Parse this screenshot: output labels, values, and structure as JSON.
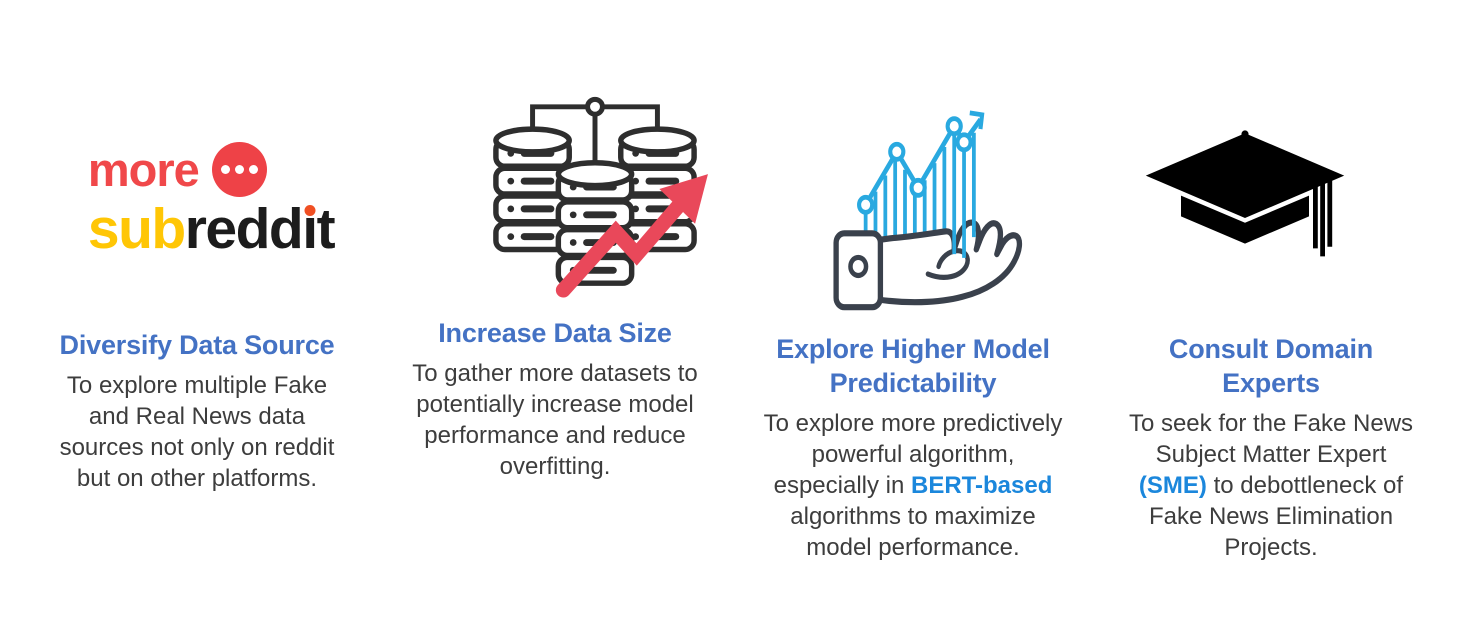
{
  "colors": {
    "background": "#ffffff",
    "heading_blue": "#4472C4",
    "accent_blue": "#1B87DC",
    "body_text": "#3D3D3D",
    "logo_red": "#F0484A",
    "logo_circle_red": "#EE4247",
    "logo_yellow": "#FFC605",
    "logo_black": "#1C1C1C",
    "logo_i_dot_orange": "#F04F23",
    "database_icon_stroke": "#2E2E2E",
    "growth_arrow_red": "#E9485A",
    "chart_blue": "#29A9E0",
    "hand_stroke": "#3A414C",
    "graduation_cap_black": "#000000"
  },
  "logo": {
    "word_more": "more",
    "word_sub": "sub",
    "word_redd": "redd",
    "word_i": "ı",
    "word_t": "t"
  },
  "cards": [
    {
      "id": "diversify-data-source",
      "icon": "more-subreddit-logo",
      "title": "Diversify Data Source",
      "body": [
        {
          "text": "To explore multiple Fake\nand Real News data\nsources not only on reddit\nbut on other platforms."
        }
      ]
    },
    {
      "id": "increase-data-size",
      "icon": "database-growth-icon",
      "title": "Increase Data Size",
      "body": [
        {
          "text": "To gather more datasets to\npotentially increase model\nperformance and reduce\noverfitting."
        }
      ]
    },
    {
      "id": "explore-higher-model-predictability",
      "icon": "hand-growth-chart-icon",
      "title": "Explore Higher Model\nPredictability",
      "body": [
        {
          "text": "To explore more predictively\npowerful algorithm,\nespecially in "
        },
        {
          "text": "BERT-based",
          "accent": true
        },
        {
          "text": "\nalgorithms to maximize\nmodel performance."
        }
      ]
    },
    {
      "id": "consult-domain-experts",
      "icon": "graduation-cap-icon",
      "title": "Consult Domain\nExperts",
      "body": [
        {
          "text": "To seek for the Fake News\nSubject Matter Expert\n"
        },
        {
          "text": "(SME)",
          "accent": true
        },
        {
          "text": " to debottleneck of\nFake News Elimination\nProjects."
        }
      ]
    }
  ]
}
